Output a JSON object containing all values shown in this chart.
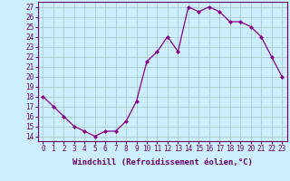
{
  "x": [
    0,
    1,
    2,
    3,
    4,
    5,
    6,
    7,
    8,
    9,
    10,
    11,
    12,
    13,
    14,
    15,
    16,
    17,
    18,
    19,
    20,
    21,
    22,
    23
  ],
  "y": [
    18,
    17,
    16,
    15,
    14.5,
    14,
    14.5,
    14.5,
    15.5,
    17.5,
    21.5,
    22.5,
    24,
    22.5,
    27,
    26.5,
    27,
    26.5,
    25.5,
    25.5,
    25,
    24,
    22,
    20
  ],
  "line_color": "#880088",
  "marker": "D",
  "marker_size": 2.0,
  "background_color": "#cceeff",
  "grid_color": "#aacccc",
  "xlabel": "Windchill (Refroidissement éolien,°C)",
  "ylim": [
    13.5,
    27.5
  ],
  "xlim": [
    -0.5,
    23.5
  ],
  "yticks": [
    14,
    15,
    16,
    17,
    18,
    19,
    20,
    21,
    22,
    23,
    24,
    25,
    26,
    27
  ],
  "xticks": [
    0,
    1,
    2,
    3,
    4,
    5,
    6,
    7,
    8,
    9,
    10,
    11,
    12,
    13,
    14,
    15,
    16,
    17,
    18,
    19,
    20,
    21,
    22,
    23
  ],
  "tick_fontsize": 5.5,
  "xlabel_fontsize": 6.5,
  "axis_color": "#660066",
  "spine_color": "#660066",
  "linewidth": 0.9
}
